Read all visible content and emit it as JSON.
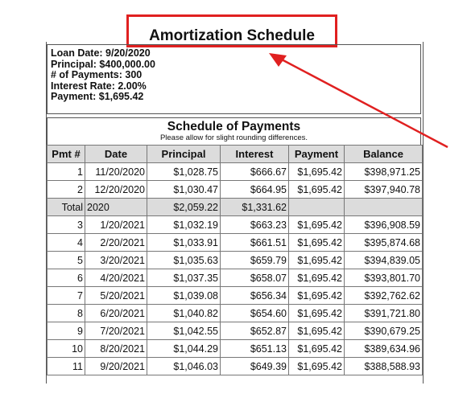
{
  "title": "Amortization Schedule",
  "loan_info": [
    "Loan Date: 9/20/2020",
    "Principal: $400,000.00",
    "# of Payments: 300",
    "Interest Rate: 2.00%",
    "Payment: $1,695.42"
  ],
  "schedule": {
    "title": "Schedule of Payments",
    "note": "Please allow for slight rounding differences."
  },
  "table": {
    "headers": [
      "Pmt #",
      "Date",
      "Principal",
      "Interest",
      "Payment",
      "Balance"
    ],
    "rows_before_total": [
      [
        "1",
        "11/20/2020",
        "$1,028.75",
        "$666.67",
        "$1,695.42",
        "$398,971.25"
      ],
      [
        "2",
        "12/20/2020",
        "$1,030.47",
        "$664.95",
        "$1,695.42",
        "$397,940.78"
      ]
    ],
    "total": [
      "Total",
      "2020",
      "$2,059.22",
      "$1,331.62",
      "",
      ""
    ],
    "rows_after_total": [
      [
        "3",
        "1/20/2021",
        "$1,032.19",
        "$663.23",
        "$1,695.42",
        "$396,908.59"
      ],
      [
        "4",
        "2/20/2021",
        "$1,033.91",
        "$661.51",
        "$1,695.42",
        "$395,874.68"
      ],
      [
        "5",
        "3/20/2021",
        "$1,035.63",
        "$659.79",
        "$1,695.42",
        "$394,839.05"
      ],
      [
        "6",
        "4/20/2021",
        "$1,037.35",
        "$658.07",
        "$1,695.42",
        "$393,801.70"
      ],
      [
        "7",
        "5/20/2021",
        "$1,039.08",
        "$656.34",
        "$1,695.42",
        "$392,762.62"
      ],
      [
        "8",
        "6/20/2021",
        "$1,040.82",
        "$654.60",
        "$1,695.42",
        "$391,721.80"
      ],
      [
        "9",
        "7/20/2021",
        "$1,042.55",
        "$652.87",
        "$1,695.42",
        "$390,679.25"
      ],
      [
        "10",
        "8/20/2021",
        "$1,044.29",
        "$651.13",
        "$1,695.42",
        "$389,634.96"
      ],
      [
        "11",
        "9/20/2021",
        "$1,046.03",
        "$649.39",
        "$1,695.42",
        "$388,588.93"
      ]
    ]
  },
  "annotation_color": "#e02020",
  "header_bg": "#dcdcdc"
}
